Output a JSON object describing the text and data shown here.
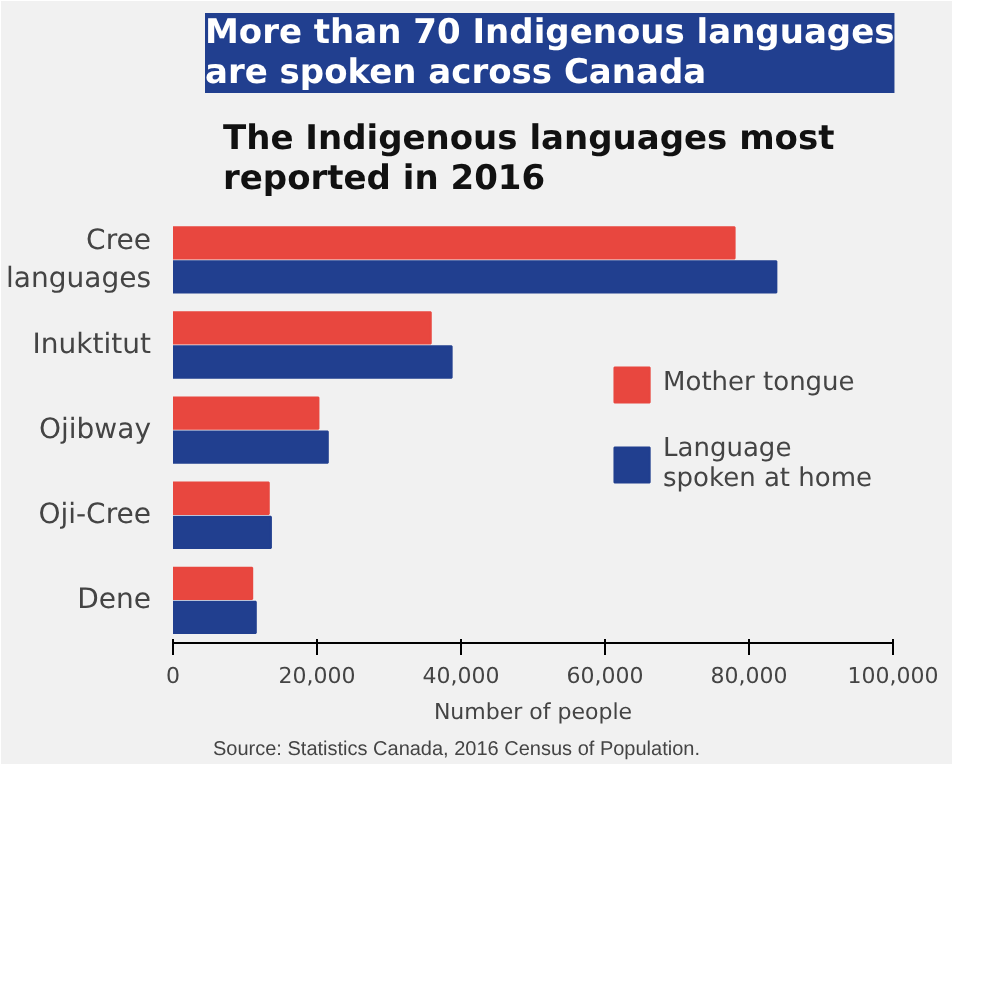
{
  "chart_data": {
    "type": "bar",
    "orientation": "horizontal",
    "title": "More than 70 Indigenous languages are spoken across Canada",
    "subtitle": "The Indigenous languages most reported in 2016",
    "xlabel": "Number of people",
    "categories": [
      "Cree languages",
      "Inuktitut",
      "Ojibway",
      "Oji-Cree",
      "Dene"
    ],
    "series": [
      {
        "name": "Mother tongue",
        "color": "#e8473f",
        "values": [
          78000,
          35800,
          20200,
          13300,
          11000
        ]
      },
      {
        "name": "Language spoken at home",
        "color": "#213f8f",
        "values": [
          83800,
          38700,
          21500,
          13600,
          11500
        ]
      }
    ],
    "xlim": [
      0,
      100000
    ],
    "xticks": [
      {
        "value": 0,
        "label": "0"
      },
      {
        "value": 20000,
        "label": "20,000"
      },
      {
        "value": 40000,
        "label": "40,000"
      },
      {
        "value": 60000,
        "label": "60,000"
      },
      {
        "value": 80000,
        "label": "80,000"
      },
      {
        "value": 100000,
        "label": "100,000"
      }
    ],
    "grid": false,
    "legend": "right",
    "annotations": [
      "Source: Statistics Canada, 2016 Census of Population."
    ]
  }
}
